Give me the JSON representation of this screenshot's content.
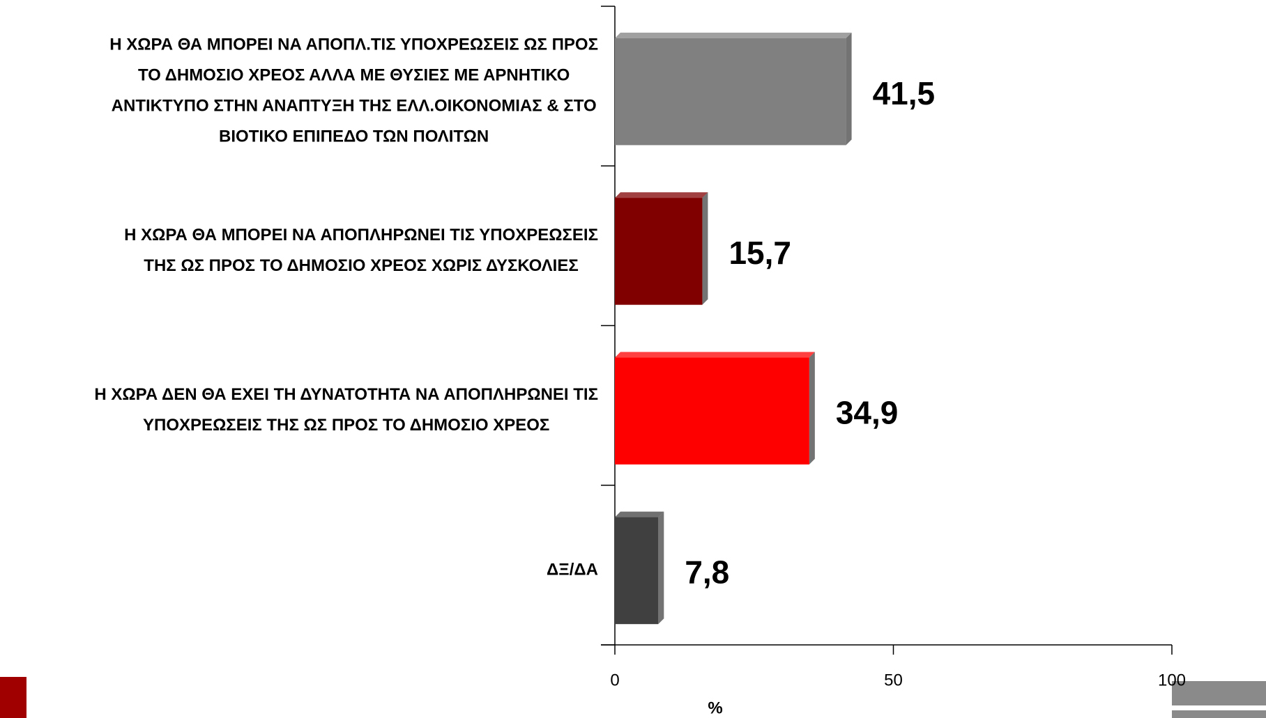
{
  "chart_data": {
    "type": "bar",
    "orientation": "horizontal",
    "categories": [
      "Η ΧΩΡΑ ΘΑ ΜΠΟΡΕΙ ΝΑ ΑΠΟΠΛ.ΤΙΣ ΥΠΟΧΡΕΩΣΕΙΣ ΩΣ ΠΡΟΣ\nΤΟ ΔΗΜΟΣΙΟ ΧΡΕΟΣ ΑΛΛΑ ΜΕ ΘΥΣΙΕΣ ΜΕ ΑΡΝΗΤΙΚΟ\nΑΝΤΙΚΤΥΠΟ ΣΤΗΝ ΑΝΑΠΤΥΞΗ ΤΗΣ ΕΛΛ.ΟΙΚΟΝΟΜΙΑΣ & ΣΤΟ\nΒΙΟΤΙΚΟ ΕΠΙΠΕΔΟ ΤΩΝ ΠΟΛΙΤΩΝ",
      "Η ΧΩΡΑ ΘΑ ΜΠΟΡΕΙ ΝΑ ΑΠΟΠΛΗΡΩΝΕΙ ΤΙΣ ΥΠΟΧΡΕΩΣΕΙΣ\nΤΗΣ ΩΣ ΠΡΟΣ ΤΟ ΔΗΜΟΣΙΟ ΧΡΕΟΣ ΧΩΡΙΣ ΔΥΣΚΟΛΙΕΣ",
      "Η ΧΩΡΑ ΔΕΝ ΘΑ ΕΧΕΙ ΤΗ ΔΥΝΑΤΟΤΗΤΑ ΝΑ ΑΠΟΠΛΗΡΩΝΕΙ ΤΙΣ\nΥΠΟΧΡΕΩΣΕΙΣ ΤΗΣ ΩΣ ΠΡΟΣ ΤΟ ΔΗΜΟΣΙΟ ΧΡΕΟΣ",
      "ΔΞ/ΔΑ"
    ],
    "values": [
      41.5,
      15.7,
      34.9,
      7.8
    ],
    "value_labels": [
      "41,5",
      "15,7",
      "34,9",
      "7,8"
    ],
    "colors": [
      "#808080",
      "#800000",
      "#ff0000",
      "#404040"
    ],
    "xlim": [
      0,
      100
    ],
    "xticks": [
      0,
      50,
      100
    ],
    "xlabel": "%"
  }
}
